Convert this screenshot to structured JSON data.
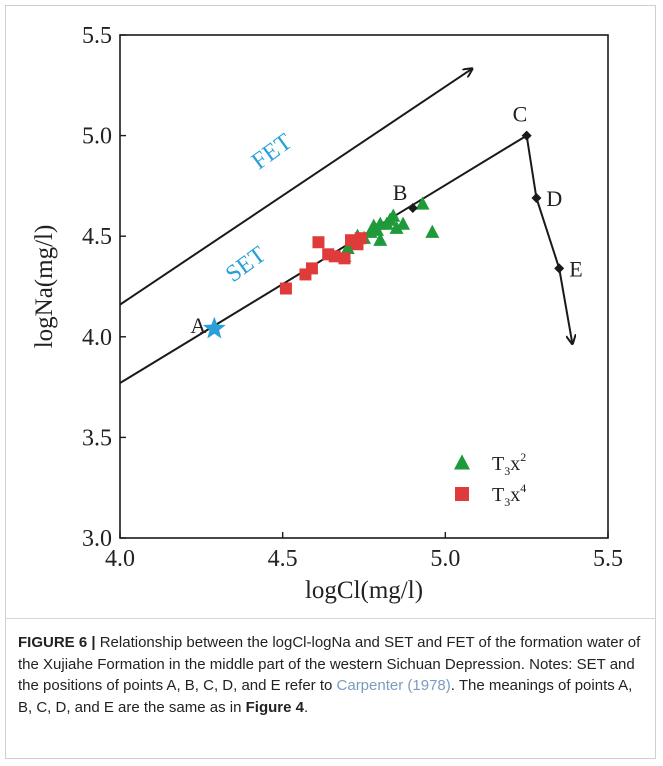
{
  "chart_data": {
    "type": "scatter",
    "xlabel": "logCl(mg/l)",
    "ylabel": "logNa(mg/l)",
    "xlim": [
      4.0,
      5.5
    ],
    "ylim": [
      3.0,
      5.5
    ],
    "xticks": [
      "4.0",
      "4.5",
      "5.0",
      "5.5"
    ],
    "yticks": [
      "3.0",
      "3.5",
      "4.0",
      "4.5",
      "5.0",
      "5.5"
    ],
    "grid": false,
    "legend_position": "bottom-right",
    "series": [
      {
        "name": "T3x2",
        "marker": "triangle",
        "color": "#1f9a3a",
        "points": [
          [
            4.69,
            4.4
          ],
          [
            4.7,
            4.44
          ],
          [
            4.71,
            4.47
          ],
          [
            4.73,
            4.5
          ],
          [
            4.75,
            4.49
          ],
          [
            4.77,
            4.52
          ],
          [
            4.78,
            4.55
          ],
          [
            4.79,
            4.53
          ],
          [
            4.8,
            4.56
          ],
          [
            4.8,
            4.48
          ],
          [
            4.82,
            4.56
          ],
          [
            4.83,
            4.58
          ],
          [
            4.84,
            4.6
          ],
          [
            4.85,
            4.54
          ],
          [
            4.87,
            4.56
          ],
          [
            4.93,
            4.66
          ],
          [
            4.96,
            4.52
          ]
        ]
      },
      {
        "name": "T3x4",
        "marker": "square",
        "color": "#e03b3b",
        "points": [
          [
            4.51,
            4.24
          ],
          [
            4.57,
            4.31
          ],
          [
            4.59,
            4.34
          ],
          [
            4.61,
            4.47
          ],
          [
            4.64,
            4.41
          ],
          [
            4.66,
            4.4
          ],
          [
            4.69,
            4.39
          ],
          [
            4.71,
            4.48
          ],
          [
            4.73,
            4.46
          ],
          [
            4.74,
            4.49
          ]
        ]
      }
    ],
    "lines": [
      {
        "name": "FET",
        "color": "#1a1a1a",
        "arrow": true,
        "from": [
          4.0,
          4.16
        ],
        "to": [
          5.08,
          5.33
        ]
      },
      {
        "name": "SET",
        "color": "#1a1a1a",
        "arrow": false,
        "from": [
          4.0,
          3.77
        ],
        "to": [
          5.25,
          5.0
        ]
      },
      {
        "name": "C-E",
        "color": "#1a1a1a",
        "arrow": true,
        "from": [
          5.25,
          5.0
        ],
        "via": [
          [
            5.28,
            4.69
          ],
          [
            5.35,
            4.34
          ]
        ],
        "to": [
          5.39,
          3.97
        ]
      }
    ],
    "points": [
      {
        "label": "A",
        "x": 4.29,
        "y": 4.04,
        "marker": "star",
        "color": "#2aa0d8"
      },
      {
        "label": "B",
        "x": 4.9,
        "y": 4.64,
        "marker": "diamond",
        "color": "#1a1a1a"
      },
      {
        "label": "C",
        "x": 5.25,
        "y": 5.0,
        "marker": "diamond",
        "color": "#1a1a1a"
      },
      {
        "label": "D",
        "x": 5.28,
        "y": 4.69,
        "marker": "diamond",
        "color": "#1a1a1a"
      },
      {
        "label": "E",
        "x": 5.35,
        "y": 4.34,
        "marker": "diamond",
        "color": "#1a1a1a"
      }
    ],
    "annotations": [
      {
        "text": "FET",
        "x": 4.48,
        "y": 4.89,
        "color": "#2aa0d8"
      },
      {
        "text": "SET",
        "x": 4.4,
        "y": 4.33,
        "color": "#2aa0d8"
      }
    ],
    "legend": [
      {
        "marker": "triangle",
        "color": "#1f9a3a",
        "text": "T",
        "sub": "3",
        "mid": "x",
        "sup": "2"
      },
      {
        "marker": "square",
        "color": "#e03b3b",
        "text": "T",
        "sub": "3",
        "mid": "x",
        "sup": "4"
      }
    ]
  },
  "caption": {
    "label": "FIGURE 6 |",
    "text_1": " Relationship between the logCl-logNa and SET and FET of the formation water of the Xujiahe Formation in the middle part of the western Sichuan Depression. Notes: SET and the positions of points A, B, C, D, and E refer to ",
    "citation": "Carpenter (1978)",
    "text_2": ". The meanings of points A, B, C, D, and E are the same as in ",
    "figure_ref": "Figure 4",
    "text_3": "."
  }
}
